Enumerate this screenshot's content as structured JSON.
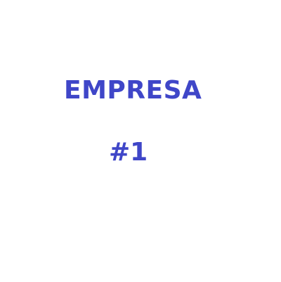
{
  "text": {
    "line1": "EMPRESA",
    "line2": "#1"
  },
  "colors": {
    "background": "#ffffff",
    "text": "#3f46c8"
  }
}
